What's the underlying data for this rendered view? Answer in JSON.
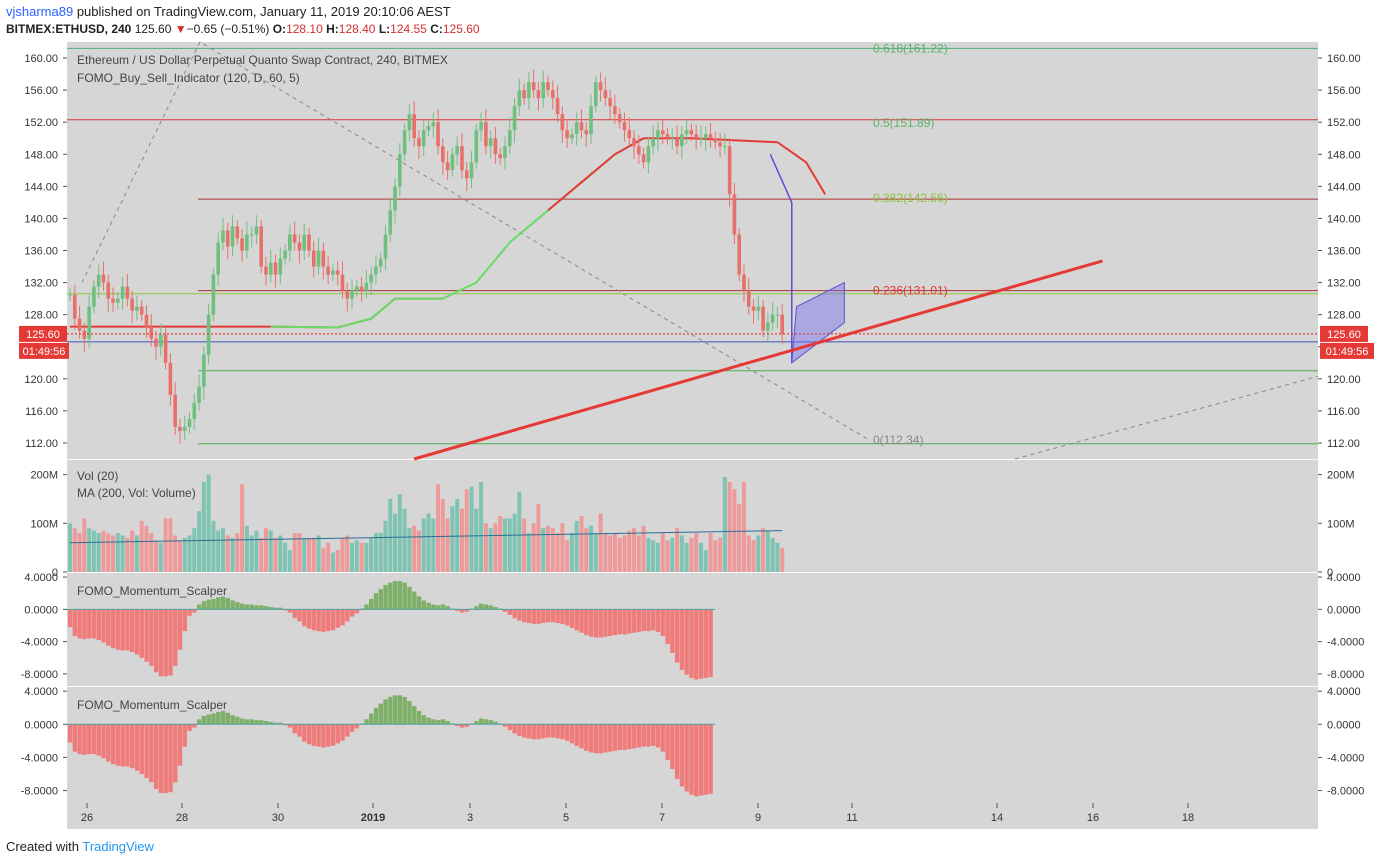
{
  "header": {
    "author": "vjsharma89",
    "published_text": "published on TradingView.com, January 11, 2019 20:10:06 AEST",
    "symbol": "BITMEX:ETHUSD, 240",
    "last": "125.60",
    "change_arrow": "▼",
    "change": "−0.65 (−0.51%)",
    "o_label": "O:",
    "o": "128.10",
    "h_label": "H:",
    "h": "128.40",
    "l_label": "L:",
    "l": "124.55",
    "c_label": "C:",
    "c": "125.60"
  },
  "footer": {
    "created_with": "Created with",
    "brand": "TradingView"
  },
  "colors": {
    "up": "#6fbf7f",
    "down": "#e8706a",
    "bg": "#d6d6d6",
    "trend": "#e53935",
    "pattern": "#5a4fd8"
  },
  "chart_data": [
    {
      "type": "line",
      "title": "Ethereum / US Dollar Perpetual Quanto Swap Contract, 240, BITMEX",
      "indicator": "FOMO_Buy_Sell_Indicator (120, D, 60, 5)",
      "ylim": [
        110,
        162
      ],
      "y_ticks": [
        "160.00",
        "156.00",
        "152.00",
        "148.00",
        "144.00",
        "140.00",
        "136.00",
        "132.00",
        "128.00",
        "124.00",
        "120.00",
        "116.00",
        "112.00"
      ],
      "x_ticks": [
        "26",
        "28",
        "30",
        "2019",
        "3",
        "5",
        "7",
        "9",
        "11",
        "14",
        "16",
        "18"
      ],
      "last_price_label": "125.60",
      "countdown_label": "01:49:56",
      "fib_levels": [
        {
          "label": "0.618(161.22)",
          "value": 161.22,
          "color": "#59b36b"
        },
        {
          "label": "0.5(151.89)",
          "value": 151.89,
          "color": "#59b36b"
        },
        {
          "label": "0.382(142.56)",
          "value": 142.56,
          "color": "#8fbf3a"
        },
        {
          "label": "0.236(131.01)",
          "value": 131.01,
          "color": "#e53935"
        },
        {
          "label": "0(112.34)",
          "value": 112.34,
          "color": "#888888"
        }
      ],
      "horizontal_levels": [
        161.2,
        152.3,
        142.4,
        131.0,
        130.6,
        125.6,
        124.6,
        121.0,
        111.9
      ],
      "closes": [
        130.5,
        127.5,
        126,
        125,
        129,
        131.5,
        133,
        132,
        130,
        129.5,
        130,
        131.5,
        130,
        128.5,
        129,
        128,
        126.5,
        125,
        124,
        125.5,
        122,
        118,
        114,
        113.5,
        114,
        115,
        117,
        119,
        123,
        128,
        133,
        137,
        138.5,
        136.5,
        139,
        137.5,
        136,
        138,
        138,
        139,
        134,
        133,
        134.5,
        133,
        135,
        136,
        138,
        137,
        136,
        138,
        136,
        134,
        136,
        134,
        133,
        133.5,
        133,
        131,
        130,
        131,
        131.5,
        131,
        132,
        133,
        134,
        135,
        138,
        141,
        144,
        148,
        151,
        153,
        150,
        149,
        151,
        151.5,
        152,
        149,
        147,
        146,
        148,
        149,
        146,
        145,
        147,
        151,
        152,
        149,
        150,
        148,
        147.5,
        149,
        151,
        154,
        156,
        155,
        157,
        156,
        155,
        157,
        156,
        155,
        153,
        151,
        150,
        150.5,
        152,
        151,
        150.5,
        154,
        157,
        156,
        155,
        154,
        153,
        152,
        151,
        150,
        149,
        148,
        147,
        149,
        150,
        151,
        150.5,
        150,
        150,
        149,
        150.5,
        151,
        150.5,
        150,
        150,
        150.5,
        150,
        149.5,
        149,
        149,
        143,
        138,
        133,
        131,
        129,
        128.5,
        129,
        126,
        127,
        128,
        128,
        125.6
      ],
      "baseline": [
        {
          "x": 0,
          "y": 126.5
        },
        {
          "x": 42,
          "y": 126.5
        },
        {
          "x": 56,
          "y": 126.4
        },
        {
          "x": 63,
          "y": 127.5
        },
        {
          "x": 68,
          "y": 130
        },
        {
          "x": 78,
          "y": 130
        },
        {
          "x": 85,
          "y": 132
        },
        {
          "x": 92,
          "y": 137
        },
        {
          "x": 100,
          "y": 141
        },
        {
          "x": 108,
          "y": 145
        },
        {
          "x": 114,
          "y": 148
        },
        {
          "x": 120,
          "y": 150
        },
        {
          "x": 130,
          "y": 150
        },
        {
          "x": 148,
          "y": 149.5
        },
        {
          "x": 154,
          "y": 147
        },
        {
          "x": 158,
          "y": 143
        }
      ],
      "trendline": {
        "from": {
          "x": 72,
          "y": 110
        },
        "to": {
          "x": 216,
          "y": 134.7
        }
      },
      "wedge": {
        "upper": [
          {
            "x": 146.5,
            "y": 148
          },
          {
            "x": 151,
            "y": 142
          }
        ],
        "top": [
          {
            "x": 152,
            "y": 129
          },
          {
            "x": 162,
            "y": 132
          }
        ],
        "lower": [
          {
            "x": 151,
            "y": 122
          },
          {
            "x": 162,
            "y": 127
          }
        ]
      }
    },
    {
      "type": "bar",
      "title": "Vol (20)",
      "indicator": "MA (200, Vol: Volume)",
      "ylim": [
        0,
        230
      ],
      "y_ticks": [
        "200M",
        "100M",
        "0"
      ],
      "values": [
        100,
        90,
        80,
        110,
        90,
        85,
        80,
        85,
        80,
        75,
        80,
        75,
        70,
        85,
        75,
        105,
        95,
        80,
        65,
        60,
        110,
        110,
        75,
        65,
        70,
        75,
        90,
        125,
        185,
        200,
        105,
        85,
        90,
        75,
        70,
        80,
        180,
        95,
        75,
        85,
        70,
        90,
        85,
        70,
        75,
        60,
        45,
        80,
        80,
        70,
        70,
        70,
        75,
        50,
        60,
        40,
        45,
        70,
        75,
        60,
        65,
        60,
        60,
        70,
        80,
        80,
        105,
        150,
        120,
        160,
        130,
        90,
        95,
        85,
        110,
        120,
        110,
        180,
        150,
        110,
        135,
        150,
        130,
        170,
        175,
        130,
        185,
        100,
        90,
        100,
        115,
        110,
        110,
        120,
        165,
        110,
        80,
        100,
        140,
        90,
        95,
        90,
        80,
        100,
        65,
        80,
        105,
        115,
        90,
        95,
        80,
        120,
        80,
        75,
        80,
        70,
        75,
        85,
        90,
        75,
        95,
        70,
        65,
        60,
        80,
        65,
        70,
        90,
        75,
        60,
        70,
        80,
        60,
        45,
        80,
        65,
        70,
        195,
        185,
        170,
        140,
        185,
        75,
        65,
        75,
        90,
        85,
        70,
        60,
        50
      ],
      "ma_start": 60,
      "ma_end": 85
    },
    {
      "type": "bar",
      "title": "FOMO_Momentum_Scalper",
      "ylim": [
        -9.5,
        4.5
      ],
      "y_ticks": [
        "4.0000",
        "0.0000",
        "-4.0000",
        "-8.0000"
      ],
      "values": [
        -2.2,
        -3.3,
        -3.6,
        -3.7,
        -3.6,
        -3.6,
        -3.8,
        -4.1,
        -4.5,
        -4.8,
        -5.0,
        -5.1,
        -5.1,
        -5.3,
        -5.6,
        -6.0,
        -6.5,
        -7.0,
        -7.8,
        -8.3,
        -8.3,
        -8.2,
        -7.0,
        -5.0,
        -2.7,
        -0.8,
        -0.4,
        0.6,
        1.0,
        1.2,
        1.3,
        1.5,
        1.6,
        1.4,
        1.1,
        0.9,
        0.7,
        0.6,
        0.6,
        0.5,
        0.5,
        0.4,
        0.3,
        0.2,
        0.2,
        -0.1,
        -0.4,
        -1.1,
        -1.5,
        -2.1,
        -2.4,
        -2.6,
        -2.7,
        -2.8,
        -2.7,
        -2.6,
        -2.3,
        -2.0,
        -1.5,
        -0.9,
        -0.5,
        0.1,
        0.6,
        1.3,
        2.0,
        2.5,
        3.0,
        3.3,
        3.5,
        3.5,
        3.3,
        2.8,
        2.2,
        1.6,
        1.1,
        0.8,
        0.6,
        0.5,
        0.6,
        0.4,
        0.1,
        -0.2,
        -0.4,
        -0.3,
        0.1,
        0.4,
        0.7,
        0.6,
        0.5,
        0.3,
        0.1,
        -0.3,
        -0.7,
        -1.1,
        -1.4,
        -1.6,
        -1.7,
        -1.8,
        -1.8,
        -1.7,
        -1.6,
        -1.6,
        -1.7,
        -1.8,
        -2.0,
        -2.3,
        -2.6,
        -2.9,
        -3.2,
        -3.4,
        -3.5,
        -3.5,
        -3.4,
        -3.3,
        -3.2,
        -3.1,
        -3.1,
        -3.0,
        -2.9,
        -2.8,
        -2.7,
        -2.7,
        -2.6,
        -2.8,
        -3.3,
        -4.3,
        -5.4,
        -6.6,
        -7.5,
        -8.1,
        -8.5,
        -8.7,
        -8.6,
        -8.5,
        -8.4
      ]
    },
    {
      "type": "bar",
      "title": "FOMO_Momentum_Scalper",
      "ylim": [
        -9.5,
        4.5
      ],
      "y_ticks": [
        "4.0000",
        "0.0000",
        "-4.0000",
        "-8.0000"
      ]
    }
  ]
}
